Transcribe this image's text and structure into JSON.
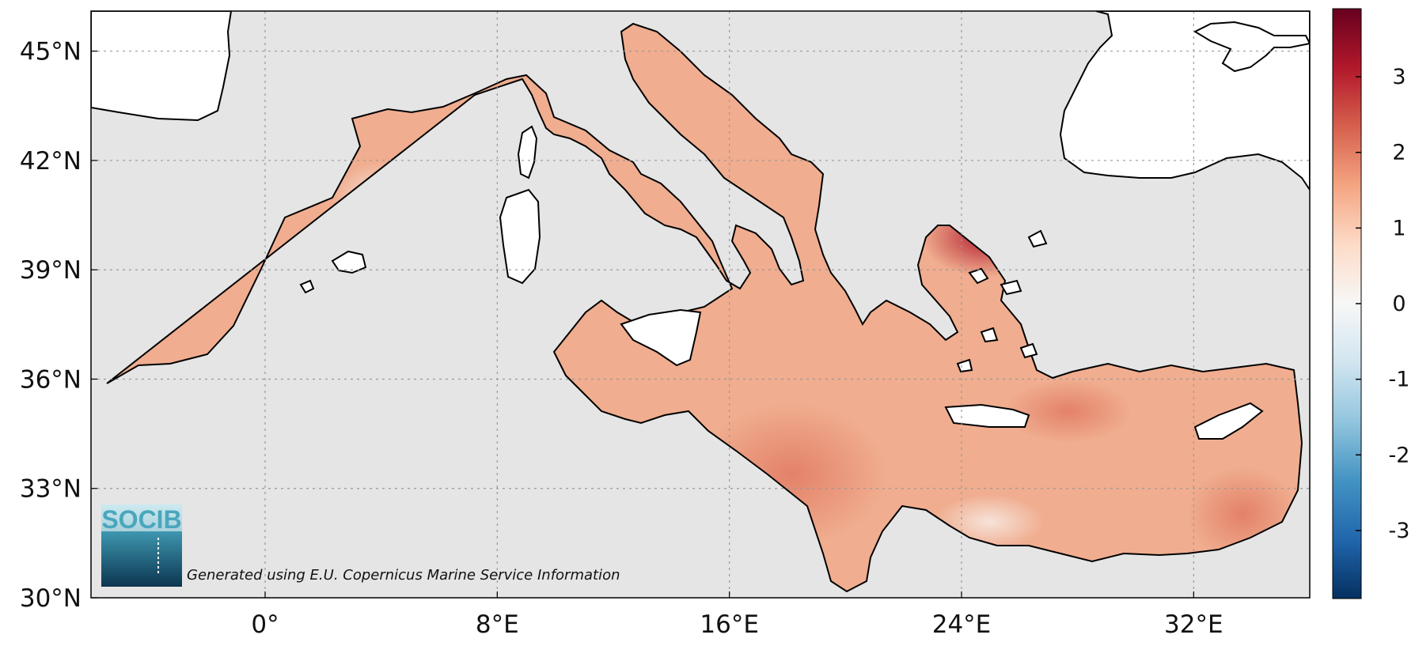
{
  "map": {
    "lat_ticks": [
      {
        "value": 45,
        "label": "45°N"
      },
      {
        "value": 42,
        "label": "42°N"
      },
      {
        "value": 39,
        "label": "39°N"
      },
      {
        "value": 36,
        "label": "36°N"
      },
      {
        "value": 33,
        "label": "33°N"
      },
      {
        "value": 30,
        "label": "30°N"
      }
    ],
    "lon_ticks": [
      {
        "value": 0,
        "label": "0°"
      },
      {
        "value": 8,
        "label": "8°E"
      },
      {
        "value": 16,
        "label": "16°E"
      },
      {
        "value": 24,
        "label": "24°E"
      },
      {
        "value": 32,
        "label": "32°E"
      }
    ],
    "lon_range": [
      -6,
      36
    ],
    "lat_range": [
      30,
      46.1
    ],
    "grid": true,
    "colors": {
      "sea_background": "#e5e5e5",
      "land": "#ffffff",
      "anomaly_base": "#f0ad8f",
      "anomaly_warm": "#d85e4a",
      "anomaly_hot": "#b1182b",
      "anomaly_cool": "#f7ede7"
    }
  },
  "colorbar": {
    "ticks": [
      {
        "value": 3,
        "label": "3"
      },
      {
        "value": 2,
        "label": "2"
      },
      {
        "value": 1,
        "label": "1"
      },
      {
        "value": 0,
        "label": "0"
      },
      {
        "value": -1,
        "label": "-1"
      },
      {
        "value": -2,
        "label": "-2"
      },
      {
        "value": -3,
        "label": "-3"
      }
    ],
    "range": [
      -3.9,
      3.9
    ],
    "stops": [
      "#053061",
      "#2166ac",
      "#4393c3",
      "#92c5de",
      "#d1e5f0",
      "#f7f7f7",
      "#fddbc7",
      "#f4a582",
      "#d6604d",
      "#b2182b",
      "#67001f"
    ]
  },
  "logo": {
    "text": "SOCIB"
  },
  "credit": {
    "text": "Generated using E.U. Copernicus Marine Service Information"
  }
}
